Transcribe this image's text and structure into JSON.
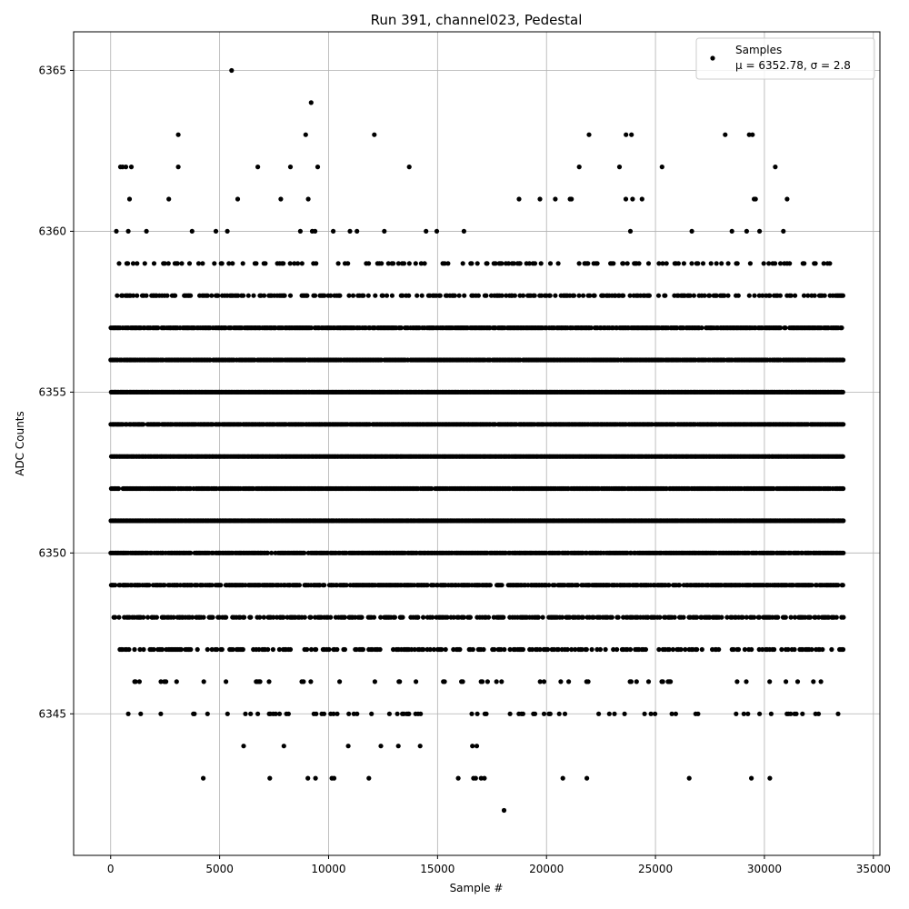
{
  "chart_data": {
    "type": "scatter",
    "title": "Run 391, channel023, Pedestal",
    "xlabel": "Sample #",
    "ylabel": "ADC Counts",
    "xlim": [
      -1700,
      35300
    ],
    "ylim": [
      6340.6,
      6366.2
    ],
    "x_ticks": [
      0,
      5000,
      10000,
      15000,
      20000,
      25000,
      30000,
      35000
    ],
    "y_ticks": [
      6345,
      6350,
      6355,
      6360,
      6365
    ],
    "grid": true,
    "legend_position": "top-right",
    "marker_color": "#000000",
    "n_samples": 33600,
    "series": [
      {
        "name": "Samples",
        "stats_label": "μ = 6352.78, σ = 2.8",
        "mean": 6352.78,
        "sigma": 2.8,
        "dense_levels": [
          {
            "y": 6359,
            "x_range": [
              0,
              33500
            ],
            "density": 0.28
          },
          {
            "y": 6358,
            "x_range": [
              0,
              33600
            ],
            "density": 0.42
          },
          {
            "y": 6357,
            "x_range": [
              0,
              33600
            ],
            "density": 0.85
          },
          {
            "y": 6356,
            "x_range": [
              0,
              33600
            ],
            "density": 0.95
          },
          {
            "y": 6355,
            "x_range": [
              0,
              33600
            ],
            "density": 1.0
          },
          {
            "y": 6354,
            "x_range": [
              0,
              33600
            ],
            "density": 0.95
          },
          {
            "y": 6353,
            "x_range": [
              0,
              33600
            ],
            "density": 1.0
          },
          {
            "y": 6352,
            "x_range": [
              0,
              33600
            ],
            "density": 0.95
          },
          {
            "y": 6351,
            "x_range": [
              0,
              33600
            ],
            "density": 1.0
          },
          {
            "y": 6350,
            "x_range": [
              0,
              33600
            ],
            "density": 0.9
          },
          {
            "y": 6349,
            "x_range": [
              0,
              33600
            ],
            "density": 0.8
          },
          {
            "y": 6348,
            "x_range": [
              0,
              33600
            ],
            "density": 0.55
          },
          {
            "y": 6347,
            "x_range": [
              0,
              33600
            ],
            "density": 0.45
          },
          {
            "y": 6346,
            "x_range": [
              0,
              33600
            ],
            "density": 0.08
          },
          {
            "y": 6345,
            "x_range": [
              0,
              33400
            ],
            "density": 0.12
          },
          {
            "y": 6360,
            "x_range": [
              0,
              31800
            ],
            "density": 0.05
          },
          {
            "y": 6361,
            "x_range": [
              0,
              31400
            ],
            "density": 0.03
          }
        ],
        "points": [
          [
            5550,
            6365
          ],
          [
            9200,
            6364
          ],
          [
            3100,
            6363
          ],
          [
            8950,
            6363
          ],
          [
            12100,
            6363
          ],
          [
            21950,
            6363
          ],
          [
            23650,
            6363
          ],
          [
            23900,
            6363
          ],
          [
            28200,
            6363
          ],
          [
            29300,
            6363
          ],
          [
            29450,
            6363
          ],
          [
            450,
            6362
          ],
          [
            550,
            6362
          ],
          [
            700,
            6362
          ],
          [
            950,
            6362
          ],
          [
            3100,
            6362
          ],
          [
            6750,
            6362
          ],
          [
            8250,
            6362
          ],
          [
            9500,
            6362
          ],
          [
            13700,
            6362
          ],
          [
            21500,
            6362
          ],
          [
            23350,
            6362
          ],
          [
            25300,
            6362
          ],
          [
            30500,
            6362
          ],
          [
            6100,
            6344
          ],
          [
            7950,
            6344
          ],
          [
            10900,
            6344
          ],
          [
            12400,
            6344
          ],
          [
            13200,
            6344
          ],
          [
            14200,
            6344
          ],
          [
            16600,
            6344
          ],
          [
            16800,
            6344
          ],
          [
            4250,
            6343
          ],
          [
            7300,
            6343
          ],
          [
            9050,
            6343
          ],
          [
            9400,
            6343
          ],
          [
            10150,
            6343
          ],
          [
            10250,
            6343
          ],
          [
            11850,
            6343
          ],
          [
            15950,
            6343
          ],
          [
            16650,
            6343
          ],
          [
            16750,
            6343
          ],
          [
            17000,
            6343
          ],
          [
            17150,
            6343
          ],
          [
            20750,
            6343
          ],
          [
            21850,
            6343
          ],
          [
            26550,
            6343
          ],
          [
            29400,
            6343
          ],
          [
            30250,
            6343
          ],
          [
            18050,
            6342
          ]
        ]
      }
    ]
  }
}
